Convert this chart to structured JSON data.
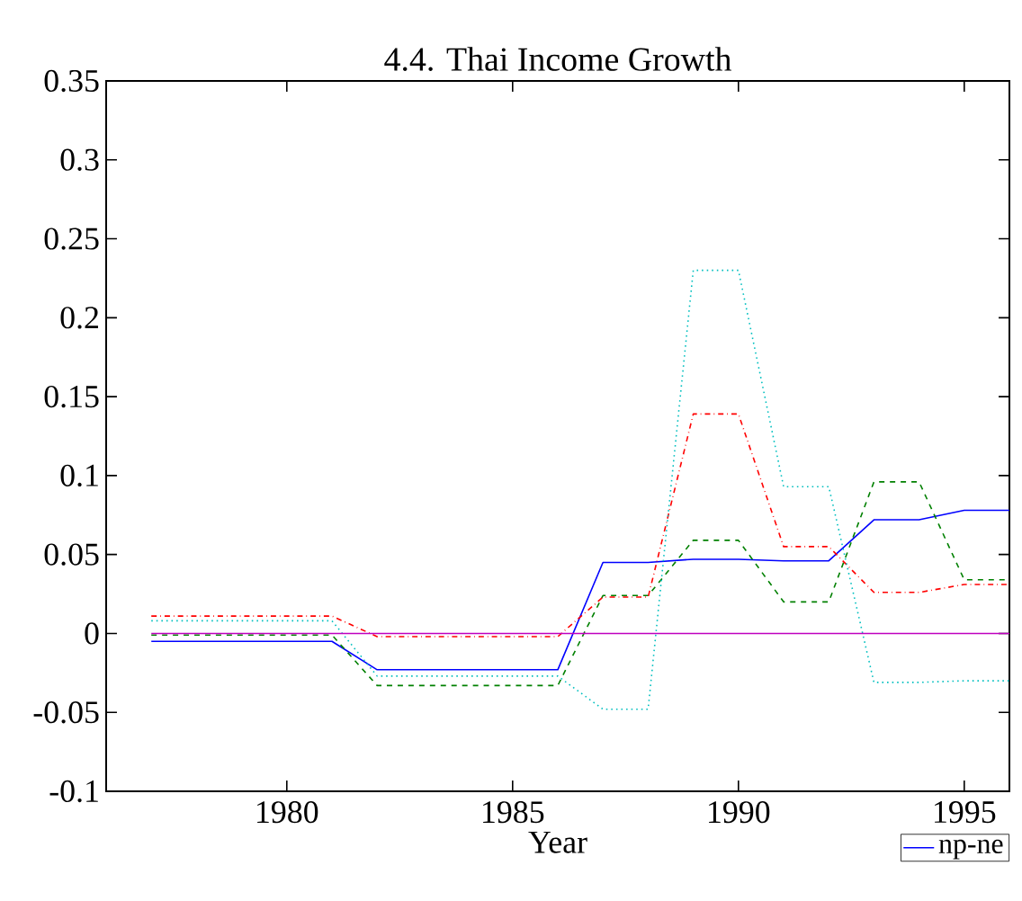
{
  "chart_data": {
    "type": "line",
    "title": "4.4. Thai Income Growth",
    "xlabel": "Year",
    "x": [
      1977,
      1978,
      1979,
      1980,
      1981,
      1982,
      1983,
      1984,
      1985,
      1986,
      1987,
      1988,
      1989,
      1990,
      1991,
      1992,
      1993,
      1994,
      1995,
      1996
    ],
    "series": [
      {
        "name": "np-ne",
        "color": "#0000ff",
        "line_style": "solid",
        "values": [
          -0.005,
          -0.005,
          -0.005,
          -0.005,
          -0.005,
          -0.023,
          -0.023,
          -0.023,
          -0.023,
          -0.023,
          0.045,
          0.045,
          0.047,
          0.047,
          0.046,
          0.046,
          0.072,
          0.072,
          0.078,
          0.078
        ]
      },
      {
        "color": "#008000",
        "line_style": "dashed",
        "values": [
          -0.001,
          -0.001,
          -0.001,
          -0.001,
          -0.001,
          -0.033,
          -0.033,
          -0.033,
          -0.033,
          -0.033,
          0.024,
          0.024,
          0.059,
          0.059,
          0.02,
          0.02,
          0.096,
          0.096,
          0.034,
          0.034
        ]
      },
      {
        "color": "#ff0000",
        "line_style": "dashdot",
        "values": [
          0.011,
          0.011,
          0.011,
          0.011,
          0.011,
          -0.002,
          -0.002,
          -0.002,
          -0.002,
          -0.002,
          0.023,
          0.023,
          0.139,
          0.139,
          0.055,
          0.055,
          0.026,
          0.026,
          0.031,
          0.031
        ]
      },
      {
        "color": "#00bfbf",
        "line_style": "dotted",
        "values": [
          0.008,
          0.008,
          0.008,
          0.008,
          0.008,
          -0.027,
          -0.027,
          -0.027,
          -0.027,
          -0.027,
          -0.048,
          -0.048,
          0.23,
          0.23,
          0.093,
          0.093,
          -0.031,
          -0.031,
          -0.03,
          -0.03
        ]
      },
      {
        "color": "#bf00bf",
        "line_style": "solid",
        "values": [
          0,
          0,
          0,
          0,
          0,
          0,
          0,
          0,
          0,
          0,
          0,
          0,
          0,
          0,
          0,
          0,
          0,
          0,
          0,
          0
        ]
      }
    ],
    "xlim": [
      1976,
      1996
    ],
    "ylim": [
      -0.1,
      0.35
    ],
    "xticks": [
      1980,
      1985,
      1990,
      1995
    ],
    "yticks": [
      -0.1,
      -0.05,
      0,
      0.05,
      0.1,
      0.15,
      0.2,
      0.25,
      0.3,
      0.35
    ],
    "grid": false,
    "legend": "bottom right",
    "marker": "none"
  }
}
